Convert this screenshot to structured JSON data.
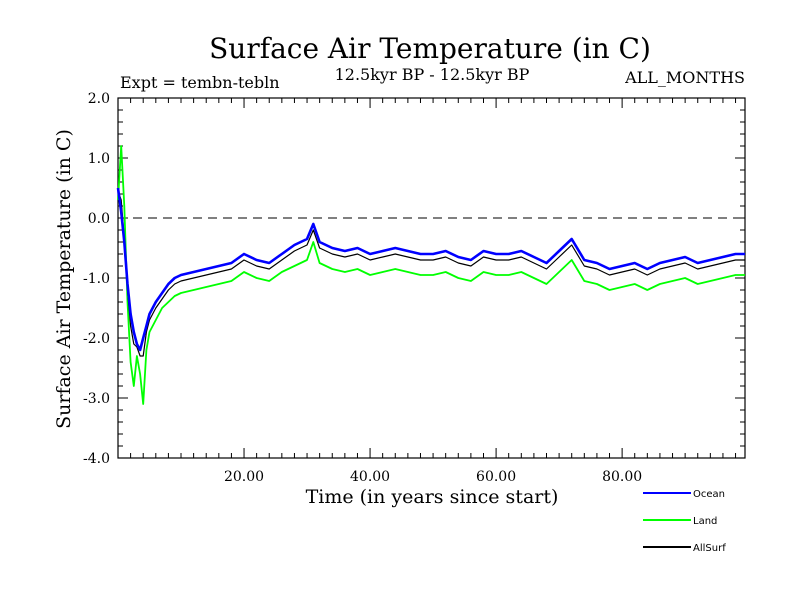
{
  "chart_data": {
    "type": "line",
    "title": "Surface Air Temperature (in C)",
    "subtitle": "12.5kyr BP - 12.5kyr BP",
    "experiment_label": "Expt = tembn-tebln",
    "months_label": "ALL_MONTHS",
    "xlabel": "Time (in years since start)",
    "ylabel": "Surface Air Temperature (in C)",
    "xlim": [
      0,
      99.5
    ],
    "ylim": [
      -4.0,
      2.0
    ],
    "x_ticks": [
      20,
      40,
      60,
      80
    ],
    "x_tick_labels": [
      "20.00",
      "40.00",
      "60.00",
      "80.00"
    ],
    "y_ticks": [
      2.0,
      1.0,
      0.0,
      -1.0,
      -2.0,
      -3.0,
      -4.0
    ],
    "y_tick_labels": [
      "2.0",
      "1.0",
      "0.0",
      "-1.0",
      "-2.0",
      "-3.0",
      "-4.0"
    ],
    "reference_line": {
      "y": 0.0,
      "style": "dashed"
    },
    "legend_position": "bottom-right",
    "series": [
      {
        "name": "Ocean",
        "color": "#0000ff",
        "x": [
          0,
          0.5,
          1,
          1.5,
          2,
          2.5,
          3,
          3.5,
          4,
          4.5,
          5,
          6,
          7,
          8,
          9,
          10,
          12,
          14,
          16,
          18,
          20,
          22,
          24,
          26,
          28,
          30,
          31,
          32,
          34,
          36,
          38,
          40,
          42,
          44,
          46,
          48,
          50,
          52,
          54,
          56,
          58,
          60,
          62,
          64,
          66,
          68,
          70,
          72,
          74,
          76,
          78,
          80,
          82,
          84,
          86,
          88,
          90,
          92,
          94,
          96,
          98,
          99.5
        ],
        "values": [
          0.5,
          0.1,
          -0.4,
          -1.1,
          -1.6,
          -1.9,
          -2.1,
          -2.2,
          -2.0,
          -1.8,
          -1.6,
          -1.4,
          -1.25,
          -1.1,
          -1.0,
          -0.95,
          -0.9,
          -0.85,
          -0.8,
          -0.75,
          -0.6,
          -0.7,
          -0.75,
          -0.6,
          -0.45,
          -0.35,
          -0.1,
          -0.4,
          -0.5,
          -0.55,
          -0.5,
          -0.6,
          -0.55,
          -0.5,
          -0.55,
          -0.6,
          -0.6,
          -0.55,
          -0.65,
          -0.7,
          -0.55,
          -0.6,
          -0.6,
          -0.55,
          -0.65,
          -0.75,
          -0.55,
          -0.35,
          -0.7,
          -0.75,
          -0.85,
          -0.8,
          -0.75,
          -0.85,
          -0.75,
          -0.7,
          -0.65,
          -0.75,
          -0.7,
          -0.65,
          -0.6,
          -0.6
        ]
      },
      {
        "name": "Land",
        "color": "#00ff00",
        "x": [
          0,
          0.5,
          1,
          1.5,
          2,
          2.5,
          3,
          3.5,
          4,
          4.5,
          5,
          6,
          7,
          8,
          9,
          10,
          12,
          14,
          16,
          18,
          20,
          22,
          24,
          26,
          28,
          30,
          31,
          32,
          34,
          36,
          38,
          40,
          42,
          44,
          46,
          48,
          50,
          52,
          54,
          56,
          58,
          60,
          62,
          64,
          66,
          68,
          70,
          72,
          74,
          76,
          78,
          80,
          82,
          84,
          86,
          88,
          90,
          92,
          94,
          96,
          98,
          99.5
        ],
        "values": [
          0.3,
          1.2,
          0.2,
          -1.4,
          -2.4,
          -2.8,
          -2.3,
          -2.6,
          -3.1,
          -2.2,
          -1.9,
          -1.7,
          -1.5,
          -1.4,
          -1.3,
          -1.25,
          -1.2,
          -1.15,
          -1.1,
          -1.05,
          -0.9,
          -1.0,
          -1.05,
          -0.9,
          -0.8,
          -0.7,
          -0.4,
          -0.75,
          -0.85,
          -0.9,
          -0.85,
          -0.95,
          -0.9,
          -0.85,
          -0.9,
          -0.95,
          -0.95,
          -0.9,
          -1.0,
          -1.05,
          -0.9,
          -0.95,
          -0.95,
          -0.9,
          -1.0,
          -1.1,
          -0.9,
          -0.7,
          -1.05,
          -1.1,
          -1.2,
          -1.15,
          -1.1,
          -1.2,
          -1.1,
          -1.05,
          -1.0,
          -1.1,
          -1.05,
          -1.0,
          -0.95,
          -0.95
        ]
      },
      {
        "name": "AllSurf",
        "color": "#000000",
        "x": [
          0,
          0.5,
          1,
          1.5,
          2,
          2.5,
          3,
          3.5,
          4,
          4.5,
          5,
          6,
          7,
          8,
          9,
          10,
          12,
          14,
          16,
          18,
          20,
          22,
          24,
          26,
          28,
          30,
          31,
          32,
          34,
          36,
          38,
          40,
          42,
          44,
          46,
          48,
          50,
          52,
          54,
          56,
          58,
          60,
          62,
          64,
          66,
          68,
          70,
          72,
          74,
          76,
          78,
          80,
          82,
          84,
          86,
          88,
          90,
          92,
          94,
          96,
          98,
          99.5
        ],
        "values": [
          0.45,
          0.3,
          -0.35,
          -1.2,
          -1.8,
          -2.1,
          -2.15,
          -2.3,
          -2.3,
          -1.9,
          -1.7,
          -1.5,
          -1.35,
          -1.2,
          -1.1,
          -1.05,
          -1.0,
          -0.95,
          -0.9,
          -0.85,
          -0.7,
          -0.8,
          -0.85,
          -0.7,
          -0.55,
          -0.45,
          -0.2,
          -0.5,
          -0.6,
          -0.65,
          -0.6,
          -0.7,
          -0.65,
          -0.6,
          -0.65,
          -0.7,
          -0.7,
          -0.65,
          -0.75,
          -0.8,
          -0.65,
          -0.7,
          -0.7,
          -0.65,
          -0.75,
          -0.85,
          -0.65,
          -0.45,
          -0.8,
          -0.85,
          -0.95,
          -0.9,
          -0.85,
          -0.95,
          -0.85,
          -0.8,
          -0.75,
          -0.85,
          -0.8,
          -0.75,
          -0.7,
          -0.7
        ]
      }
    ]
  }
}
